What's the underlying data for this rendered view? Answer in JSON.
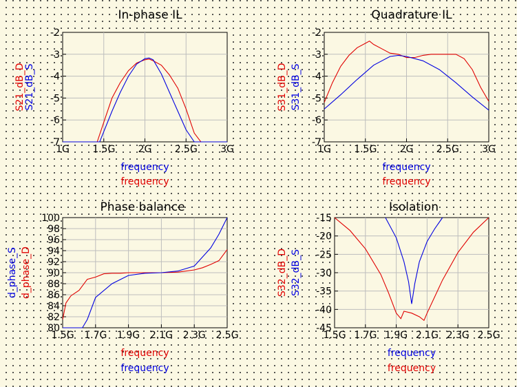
{
  "colors": {
    "D": "#e00000",
    "S": "#0000e0"
  },
  "chart_data": [
    {
      "id": "inphase",
      "type": "line",
      "title": "In-phase IL",
      "x_ticks": [
        "1G",
        "1.5G",
        "2G",
        "2.5G",
        "3G"
      ],
      "y_ticks": [
        "-2",
        "-3",
        "-4",
        "-5",
        "-6",
        "-7"
      ],
      "xlim": [
        1,
        3
      ],
      "ylim": [
        -7,
        -2
      ],
      "grid": true,
      "ylabels": [
        {
          "text": "S21_dB_D",
          "color": "D"
        },
        {
          "text": "S21_dB_S",
          "color": "S"
        }
      ],
      "xlabels": [
        {
          "text": "frequency",
          "color": "S"
        },
        {
          "text": "frequency",
          "color": "D"
        }
      ],
      "series": [
        {
          "name": "S21_dB_D",
          "color": "D",
          "x": [
            1.0,
            1.42,
            1.5,
            1.6,
            1.7,
            1.8,
            1.9,
            2.0,
            2.05,
            2.1,
            2.2,
            2.3,
            2.4,
            2.5,
            2.6,
            2.68,
            3.0
          ],
          "y": [
            -7,
            -7,
            -6.1,
            -5.0,
            -4.3,
            -3.75,
            -3.4,
            -3.25,
            -3.22,
            -3.3,
            -3.5,
            -3.95,
            -4.55,
            -5.5,
            -6.6,
            -7,
            -7
          ]
        },
        {
          "name": "S21_dB_S",
          "color": "S",
          "x": [
            1.0,
            1.45,
            1.6,
            1.7,
            1.8,
            1.9,
            2.0,
            2.05,
            2.1,
            2.2,
            2.3,
            2.4,
            2.5,
            2.6,
            2.65,
            3.0
          ],
          "y": [
            -7,
            -7,
            -5.6,
            -4.75,
            -4.0,
            -3.45,
            -3.2,
            -3.17,
            -3.25,
            -3.9,
            -4.75,
            -5.6,
            -6.45,
            -7,
            -7,
            -7
          ]
        }
      ]
    },
    {
      "id": "quadrature",
      "type": "line",
      "title": "Quadrature IL",
      "x_ticks": [
        "1G",
        "1.5G",
        "2G",
        "2.5G",
        "3G"
      ],
      "y_ticks": [
        "-2",
        "-3",
        "-4",
        "-5",
        "-6",
        "-7"
      ],
      "xlim": [
        1,
        3
      ],
      "ylim": [
        -7,
        -2
      ],
      "grid": true,
      "ylabels": [
        {
          "text": "S31_dB_D",
          "color": "D"
        },
        {
          "text": "S31_dB_S",
          "color": "S"
        }
      ],
      "xlabels": [
        {
          "text": "frequency",
          "color": "S"
        },
        {
          "text": "frequency",
          "color": "D"
        }
      ],
      "series": [
        {
          "name": "S31_dB_D",
          "color": "D",
          "x": [
            1.0,
            1.1,
            1.2,
            1.3,
            1.4,
            1.5,
            1.55,
            1.6,
            1.7,
            1.8,
            1.9,
            2.0,
            2.1,
            2.2,
            2.3,
            2.4,
            2.5,
            2.6,
            2.7,
            2.8,
            2.9,
            3.0
          ],
          "y": [
            -5.2,
            -4.3,
            -3.55,
            -3.05,
            -2.7,
            -2.5,
            -2.4,
            -2.55,
            -2.75,
            -2.95,
            -3.0,
            -3.15,
            -3.15,
            -3.05,
            -3.0,
            -3.0,
            -3.0,
            -3.0,
            -3.2,
            -3.7,
            -4.5,
            -5.15
          ]
        },
        {
          "name": "S31_dB_S",
          "color": "S",
          "x": [
            1.0,
            1.2,
            1.4,
            1.6,
            1.8,
            1.9,
            2.0,
            2.2,
            2.4,
            2.6,
            2.8,
            3.0
          ],
          "y": [
            -5.5,
            -4.85,
            -4.15,
            -3.5,
            -3.1,
            -3.05,
            -3.1,
            -3.3,
            -3.7,
            -4.3,
            -4.95,
            -5.55
          ]
        }
      ]
    },
    {
      "id": "phase",
      "type": "line",
      "title": "Phase balance",
      "x_ticks": [
        "1.5G",
        "1.7G",
        "1.9G",
        "2.1G",
        "2.3G",
        "2.5G"
      ],
      "y_ticks": [
        "100",
        "98",
        "96",
        "94",
        "92",
        "90",
        "88",
        "86",
        "84",
        "82",
        "80"
      ],
      "xlim": [
        1.5,
        2.5
      ],
      "ylim": [
        80,
        100
      ],
      "grid": true,
      "ylabels": [
        {
          "text": "d_phase_S",
          "color": "S"
        },
        {
          "text": "d_phase_D",
          "color": "D"
        }
      ],
      "xlabels": [
        {
          "text": "frequency",
          "color": "D"
        },
        {
          "text": "frequency",
          "color": "S"
        }
      ],
      "series": [
        {
          "name": "d_phase_D",
          "color": "D",
          "x": [
            1.5,
            1.52,
            1.55,
            1.6,
            1.65,
            1.7,
            1.75,
            1.8,
            1.85,
            1.9,
            2.0,
            2.1,
            2.2,
            2.3,
            2.35,
            2.4,
            2.45,
            2.5
          ],
          "y": [
            81.5,
            84.5,
            85.8,
            86.8,
            88.8,
            89.2,
            89.8,
            89.9,
            89.9,
            90.0,
            90.0,
            90.0,
            90.1,
            90.5,
            90.9,
            91.5,
            92.2,
            94.2
          ]
        },
        {
          "name": "d_phase_S",
          "color": "S",
          "x": [
            1.5,
            1.62,
            1.65,
            1.7,
            1.8,
            1.9,
            2.0,
            2.1,
            2.2,
            2.3,
            2.4,
            2.45,
            2.5
          ],
          "y": [
            80,
            80,
            81.5,
            85.5,
            88.0,
            89.5,
            89.9,
            90.0,
            90.3,
            91.2,
            94.5,
            97.0,
            100
          ]
        }
      ]
    },
    {
      "id": "isolation",
      "type": "line",
      "title": "Isolation",
      "x_ticks": [
        "1.5G",
        "1.7G",
        "1.9G",
        "2.1G",
        "2.3G",
        "2.5G"
      ],
      "y_ticks": [
        "-15",
        "-20",
        "-25",
        "-30",
        "-35",
        "-40",
        "-45"
      ],
      "xlim": [
        1.5,
        2.5
      ],
      "ylim": [
        -45,
        -15
      ],
      "grid": true,
      "ylabels": [
        {
          "text": "S32_dB_D",
          "color": "D"
        },
        {
          "text": "S32_dB_S",
          "color": "S"
        }
      ],
      "xlabels": [
        {
          "text": "frequency",
          "color": "S"
        },
        {
          "text": "frequency",
          "color": "D"
        }
      ],
      "series": [
        {
          "name": "S32_dB_D",
          "color": "D",
          "x": [
            1.5,
            1.6,
            1.7,
            1.8,
            1.85,
            1.9,
            1.93,
            1.95,
            2.0,
            2.05,
            2.08,
            2.1,
            2.2,
            2.3,
            2.4,
            2.5
          ],
          "y": [
            -15,
            -18.5,
            -23.5,
            -30.5,
            -35.5,
            -41,
            -42.5,
            -40.5,
            -41,
            -42,
            -43,
            -41,
            -32,
            -24.5,
            -19,
            -15
          ]
        },
        {
          "name": "S32_dB_S",
          "color": "S",
          "x": [
            1.83,
            1.9,
            1.95,
            1.98,
            2.0,
            2.02,
            2.05,
            2.1,
            2.15,
            2.2
          ],
          "y": [
            -15,
            -20.5,
            -27,
            -32.5,
            -38.5,
            -33,
            -27,
            -21.5,
            -18,
            -15
          ]
        }
      ]
    }
  ]
}
